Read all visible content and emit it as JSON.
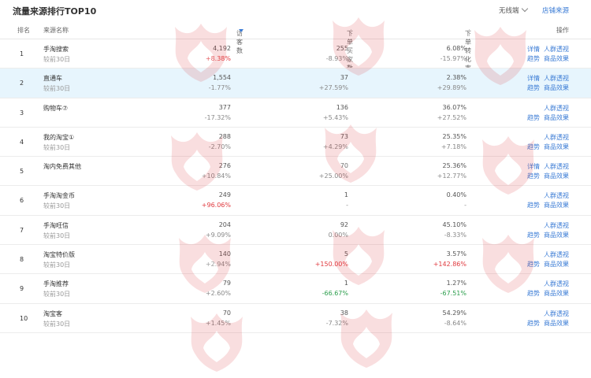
{
  "title": "流量来源排行TOP10",
  "dropdown_label": "无线端",
  "header_link": "店铺来源",
  "columns": {
    "rank": "排名",
    "source": "来源名称",
    "visitors": "访客数",
    "buyers": "下单买家数",
    "conversion": "下单转化率",
    "actions": "操作"
  },
  "watermark_text": "火星电商",
  "rows": [
    {
      "rank": "1",
      "name": "手淘搜索",
      "sub": "较前30日",
      "v1": "4,192",
      "d1": "+8.38%",
      "d1c": "red",
      "v2": "255",
      "d2": "-8.93%",
      "d2c": "gray",
      "v3": "6.08%",
      "d3": "-15.97%",
      "d3c": "gray",
      "actions": [
        "详情",
        "人群透视",
        "趋势",
        "商品效果"
      ]
    },
    {
      "rank": "2",
      "name": "直通车",
      "sub": "较前30日",
      "v1": "1,554",
      "d1": "-1.77%",
      "d1c": "gray",
      "v2": "37",
      "d2": "+27.59%",
      "d2c": "gray",
      "v3": "2.38%",
      "d3": "+29.89%",
      "d3c": "gray",
      "actions": [
        "详情",
        "人群透视",
        "趋势",
        "商品效果"
      ]
    },
    {
      "rank": "3",
      "name": "购物车⑦",
      "sub": "",
      "v1": "377",
      "d1": "-17.32%",
      "d1c": "gray",
      "v2": "136",
      "d2": "+5.43%",
      "d2c": "gray",
      "v3": "36.07%",
      "d3": "+27.52%",
      "d3c": "gray",
      "actions": [
        "",
        "人群透视",
        "趋势",
        "商品效果"
      ]
    },
    {
      "rank": "4",
      "name": "我的淘宝①",
      "sub": "较前30日",
      "v1": "288",
      "d1": "-2.70%",
      "d1c": "gray",
      "v2": "73",
      "d2": "+4.29%",
      "d2c": "gray",
      "v3": "25.35%",
      "d3": "+7.18%",
      "d3c": "gray",
      "actions": [
        "",
        "人群透视",
        "趋势",
        "商品效果"
      ]
    },
    {
      "rank": "5",
      "name": "淘内免费其他",
      "sub": "",
      "v1": "276",
      "d1": "+10.84%",
      "d1c": "gray",
      "v2": "70",
      "d2": "+25.00%",
      "d2c": "gray",
      "v3": "25.36%",
      "d3": "+12.77%",
      "d3c": "gray",
      "actions": [
        "详情",
        "人群透视",
        "趋势",
        "商品效果"
      ]
    },
    {
      "rank": "6",
      "name": "手淘淘金币",
      "sub": "较前30日",
      "v1": "249",
      "d1": "+96.06%",
      "d1c": "red",
      "v2": "1",
      "d2": "-",
      "d2c": "gray",
      "v3": "0.40%",
      "d3": "-",
      "d3c": "gray",
      "actions": [
        "",
        "人群透视",
        "趋势",
        "商品效果"
      ]
    },
    {
      "rank": "7",
      "name": "手淘旺信",
      "sub": "较前30日",
      "v1": "204",
      "d1": "+9.09%",
      "d1c": "gray",
      "v2": "92",
      "d2": "0.00%",
      "d2c": "gray",
      "v3": "45.10%",
      "d3": "-8.33%",
      "d3c": "gray",
      "actions": [
        "",
        "人群透视",
        "趋势",
        "商品效果"
      ]
    },
    {
      "rank": "8",
      "name": "淘宝特价版",
      "sub": "较前30日",
      "v1": "140",
      "d1": "+2.94%",
      "d1c": "gray",
      "v2": "5",
      "d2": "+150.00%",
      "d2c": "red",
      "v3": "3.57%",
      "d3": "+142.86%",
      "d3c": "red",
      "actions": [
        "",
        "人群透视",
        "趋势",
        "商品效果"
      ]
    },
    {
      "rank": "9",
      "name": "手淘推荐",
      "sub": "较前30日",
      "v1": "79",
      "d1": "+2.60%",
      "d1c": "gray",
      "v2": "1",
      "d2": "-66.67%",
      "d2c": "green",
      "v3": "1.27%",
      "d3": "-67.51%",
      "d3c": "green",
      "actions": [
        "",
        "人群透视",
        "趋势",
        "商品效果"
      ]
    },
    {
      "rank": "10",
      "name": "淘宝客",
      "sub": "较前30日",
      "v1": "70",
      "d1": "+1.45%",
      "d1c": "gray",
      "v2": "38",
      "d2": "-7.32%",
      "d2c": "gray",
      "v3": "54.29%",
      "d3": "-8.64%",
      "d3c": "gray",
      "actions": [
        "",
        "人群透视",
        "趋势",
        "商品效果"
      ]
    }
  ]
}
